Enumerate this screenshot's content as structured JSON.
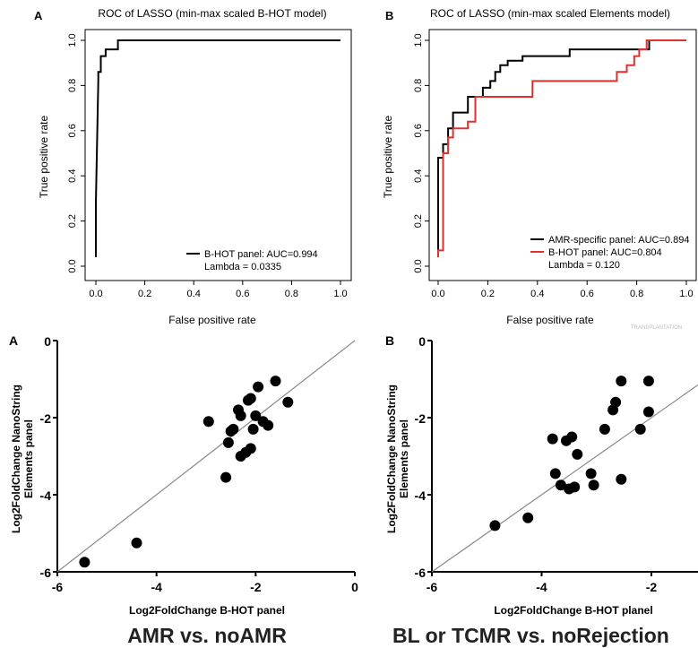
{
  "captions": {
    "left": "AMR vs. noAMR",
    "right": "BL or TCMR vs. noRejection"
  },
  "watermark": "TRANSPLANTATION",
  "chart_data": [
    {
      "id": "roc_a",
      "type": "line",
      "panel_label": "A",
      "title": "ROC of LASSO (min-max scaled B-HOT model)",
      "xlabel": "False positive rate",
      "ylabel": "True positive rate",
      "xlim": [
        0,
        1
      ],
      "ylim": [
        0,
        1
      ],
      "xticks": [
        "0.0",
        "0.2",
        "0.4",
        "0.6",
        "0.8",
        "1.0"
      ],
      "yticks": [
        "0.0",
        "0.2",
        "0.4",
        "0.6",
        "0.8",
        "1.0"
      ],
      "legend_placement": "bottom-right",
      "lambda_text": "Lambda = 0.0335",
      "series": [
        {
          "name": "B-HOT panel: AUC=0.994",
          "color": "#000000",
          "x": [
            0,
            0,
            0.01,
            0.01,
            0.02,
            0.02,
            0.04,
            0.04,
            0.09,
            0.09,
            1.0
          ],
          "y": [
            0.04,
            0.28,
            0.82,
            0.86,
            0.86,
            0.93,
            0.93,
            0.96,
            0.96,
            1.0,
            1.0
          ]
        }
      ]
    },
    {
      "id": "roc_b",
      "type": "line",
      "panel_label": "B",
      "title": "ROC of LASSO (min-max scaled Elements model)",
      "xlabel": "False positive rate",
      "ylabel": "True positive rate",
      "xlim": [
        0,
        1
      ],
      "ylim": [
        0,
        1
      ],
      "xticks": [
        "0.0",
        "0.2",
        "0.4",
        "0.6",
        "0.8",
        "1.0"
      ],
      "yticks": [
        "0.0",
        "0.2",
        "0.4",
        "0.6",
        "0.8",
        "1.0"
      ],
      "legend_placement": "bottom-right",
      "lambda_text": "Lambda = 0.120",
      "series": [
        {
          "name": "AMR-specific panel: AUC=0.894",
          "color": "#000000",
          "x": [
            0,
            0,
            0.02,
            0.02,
            0.04,
            0.04,
            0.06,
            0.06,
            0.12,
            0.12,
            0.18,
            0.18,
            0.21,
            0.21,
            0.23,
            0.23,
            0.25,
            0.25,
            0.28,
            0.28,
            0.34,
            0.34,
            0.53,
            0.53,
            0.85,
            0.85,
            1.0
          ],
          "y": [
            0.04,
            0.48,
            0.48,
            0.54,
            0.54,
            0.61,
            0.61,
            0.68,
            0.68,
            0.75,
            0.75,
            0.79,
            0.79,
            0.82,
            0.82,
            0.86,
            0.86,
            0.89,
            0.89,
            0.91,
            0.91,
            0.93,
            0.93,
            0.96,
            0.96,
            1.0,
            1.0
          ]
        },
        {
          "name": "B-HOT panel: AUC=0.804",
          "color": "#e03030",
          "x": [
            0,
            0,
            0.02,
            0.02,
            0.04,
            0.04,
            0.06,
            0.06,
            0.12,
            0.12,
            0.15,
            0.15,
            0.38,
            0.38,
            0.72,
            0.72,
            0.76,
            0.76,
            0.79,
            0.79,
            0.81,
            0.81,
            0.84,
            0.84,
            1.0
          ],
          "y": [
            0.04,
            0.07,
            0.07,
            0.5,
            0.5,
            0.57,
            0.57,
            0.61,
            0.61,
            0.64,
            0.64,
            0.75,
            0.75,
            0.82,
            0.82,
            0.86,
            0.86,
            0.89,
            0.89,
            0.93,
            0.93,
            0.96,
            0.96,
            1.0,
            1.0
          ]
        }
      ]
    },
    {
      "id": "scatter_a",
      "type": "scatter",
      "panel_label": "A",
      "xlabel": "Log2FoldChange B-HOT panel",
      "ylabel": [
        "Log2FoldChange NanoString",
        "Elements panel"
      ],
      "xlim": [
        -6,
        0
      ],
      "ylim": [
        -6,
        0
      ],
      "xticks": [
        "-6",
        "-4",
        "-2",
        "0"
      ],
      "yticks": [
        "-6",
        "-4",
        "-2",
        "0"
      ],
      "identity_line": true,
      "points": [
        [
          -5.45,
          -5.75
        ],
        [
          -4.4,
          -5.25
        ],
        [
          -2.95,
          -2.1
        ],
        [
          -2.6,
          -3.55
        ],
        [
          -2.55,
          -2.65
        ],
        [
          -2.5,
          -2.35
        ],
        [
          -2.45,
          -2.3
        ],
        [
          -2.35,
          -1.8
        ],
        [
          -2.3,
          -1.95
        ],
        [
          -2.3,
          -3.0
        ],
        [
          -2.2,
          -2.9
        ],
        [
          -2.15,
          -1.55
        ],
        [
          -2.1,
          -1.5
        ],
        [
          -2.1,
          -2.8
        ],
        [
          -2.05,
          -2.3
        ],
        [
          -2.0,
          -1.95
        ],
        [
          -1.95,
          -1.2
        ],
        [
          -1.85,
          -2.1
        ],
        [
          -1.75,
          -2.2
        ],
        [
          -1.6,
          -1.05
        ],
        [
          -1.35,
          -1.6
        ]
      ]
    },
    {
      "id": "scatter_b",
      "type": "scatter",
      "panel_label": "B",
      "xlabel": "Log2FoldChange B-HOT planel",
      "ylabel": [
        "Log2FoldChange NanoString",
        "Elements panel"
      ],
      "xlim": [
        -6,
        -1.15
      ],
      "ylim": [
        -6,
        0
      ],
      "xticks": [
        "-6",
        "-4",
        "-2"
      ],
      "yticks": [
        "-6",
        "-4",
        "-2",
        "0"
      ],
      "identity_line": true,
      "points": [
        [
          -4.85,
          -4.8
        ],
        [
          -4.25,
          -4.6
        ],
        [
          -3.8,
          -2.55
        ],
        [
          -3.75,
          -3.45
        ],
        [
          -3.65,
          -3.75
        ],
        [
          -3.55,
          -2.6
        ],
        [
          -3.5,
          -3.85
        ],
        [
          -3.45,
          -2.5
        ],
        [
          -3.4,
          -3.8
        ],
        [
          -3.35,
          -2.95
        ],
        [
          -3.1,
          -3.45
        ],
        [
          -3.05,
          -3.75
        ],
        [
          -2.85,
          -2.3
        ],
        [
          -2.7,
          -1.8
        ],
        [
          -2.65,
          -1.6
        ],
        [
          -2.55,
          -1.05
        ],
        [
          -2.55,
          -3.6
        ],
        [
          -2.2,
          -2.3
        ],
        [
          -2.05,
          -1.05
        ],
        [
          -2.05,
          -1.85
        ]
      ]
    }
  ]
}
